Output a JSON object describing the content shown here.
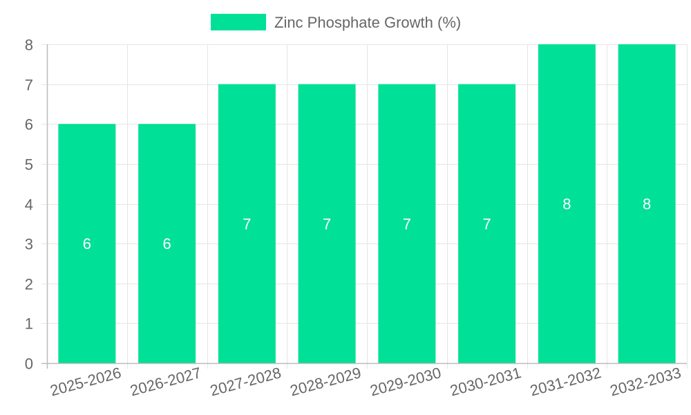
{
  "chart_data": {
    "type": "bar",
    "title": "",
    "xlabel": "",
    "ylabel": "",
    "categories": [
      "2025-2026",
      "2026-2027",
      "2027-2028",
      "2028-2029",
      "2029-2030",
      "2030-2031",
      "2031-2032",
      "2032-2033"
    ],
    "series": [
      {
        "name": "Zinc Phosphate Growth (%)",
        "values": [
          6,
          6,
          7,
          7,
          7,
          7,
          8,
          8
        ],
        "color": "#00e096"
      }
    ],
    "ylim": [
      0,
      8
    ],
    "yticks": [
      0,
      1,
      2,
      3,
      4,
      5,
      6,
      7,
      8
    ],
    "grid": true,
    "legend_position": "top-center",
    "data_labels": [
      "6",
      "6",
      "7",
      "7",
      "7",
      "7",
      "8",
      "8"
    ]
  },
  "colors": {
    "bar": "#00e096",
    "grid": "#e5e5e5",
    "axis": "#bbbbbb",
    "text": "#666666",
    "label": "#ffffff"
  }
}
